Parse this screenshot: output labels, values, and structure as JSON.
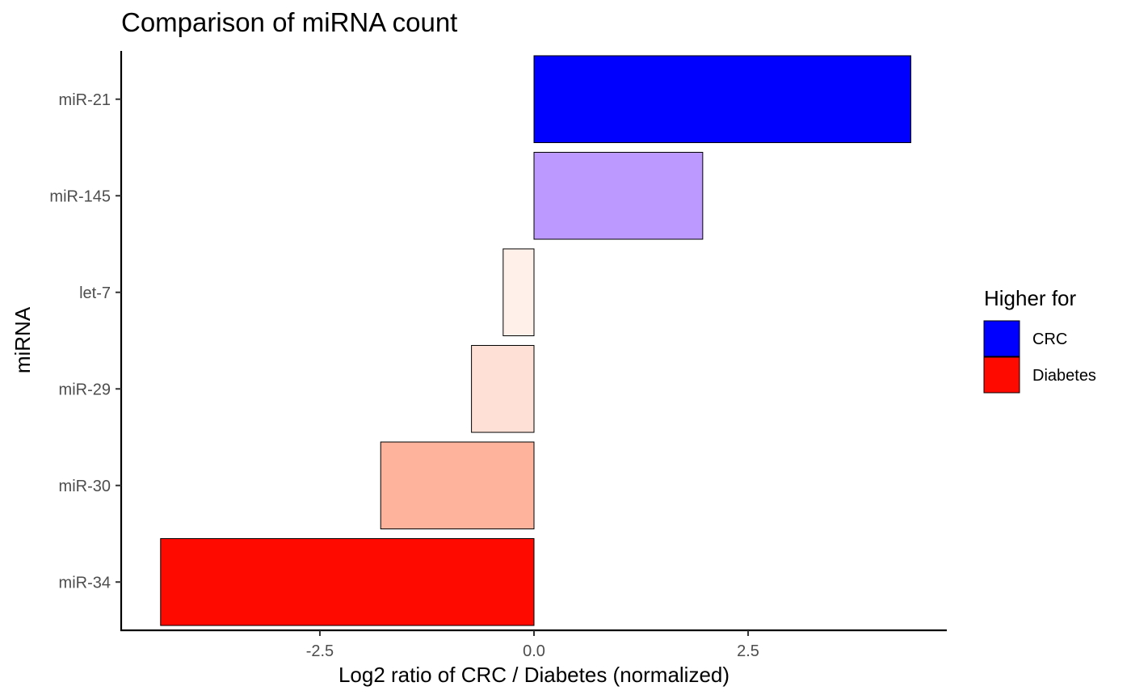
{
  "chart_data": {
    "type": "bar",
    "orientation": "horizontal",
    "title": "Comparison of miRNA count",
    "xlabel": "Log2 ratio of CRC / Diabetes (normalized)",
    "ylabel": "miRNA",
    "categories": [
      "miR-21",
      "miR-145",
      "let-7",
      "miR-29",
      "miR-30",
      "miR-34"
    ],
    "values": [
      4.4,
      1.97,
      -0.36,
      -0.73,
      -1.79,
      -4.36
    ],
    "bar_colors": [
      "#0000ff",
      "#bb99ff",
      "#fff0ea",
      "#ffe0d6",
      "#feb39c",
      "#ff0a00"
    ],
    "xlim": [
      -4.82,
      4.82
    ],
    "x_ticks": [
      -2.5,
      0.0,
      2.5
    ],
    "x_tick_labels": [
      "-2.5",
      "0.0",
      "2.5"
    ],
    "grid": false,
    "legend": {
      "title": "Higher for",
      "position": "right",
      "entries": [
        {
          "label": "CRC",
          "color": "#0000ff"
        },
        {
          "label": "Diabetes",
          "color": "#ff0a00"
        }
      ]
    }
  }
}
